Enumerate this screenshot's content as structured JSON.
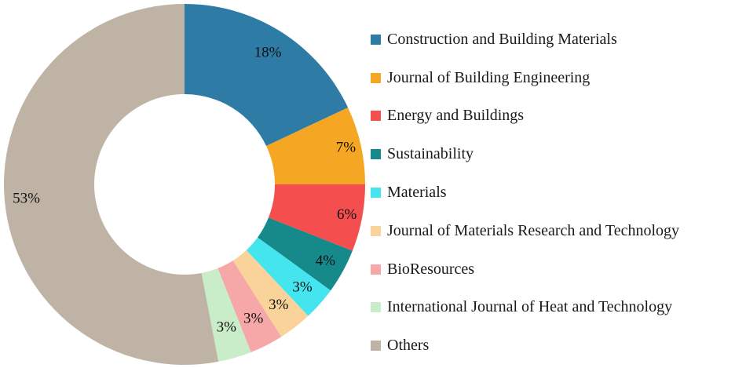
{
  "chart_data": {
    "type": "pie",
    "variant": "donut",
    "categories": [
      "Construction and Building Materials",
      "Journal of Building Engineering",
      "Energy and Buildings",
      "Sustainability",
      "Materials",
      "Journal of Materials Research and Technology",
      "BioResources",
      "International Journal of Heat and Technology",
      "Others"
    ],
    "values": [
      18,
      7,
      6,
      4,
      3,
      3,
      3,
      3,
      53
    ],
    "labels": [
      "18%",
      "7%",
      "6%",
      "4%",
      "3%",
      "3%",
      "3%",
      "3%",
      "53%"
    ],
    "colors": [
      "#2E7BA6",
      "#F5A623",
      "#F44E4E",
      "#168A8A",
      "#44E5EE",
      "#FAD39B",
      "#F6A7A7",
      "#C8EDC8",
      "#BEB3A5"
    ],
    "legend_position": "right",
    "start_angle": "top",
    "direction": "clockwise"
  }
}
